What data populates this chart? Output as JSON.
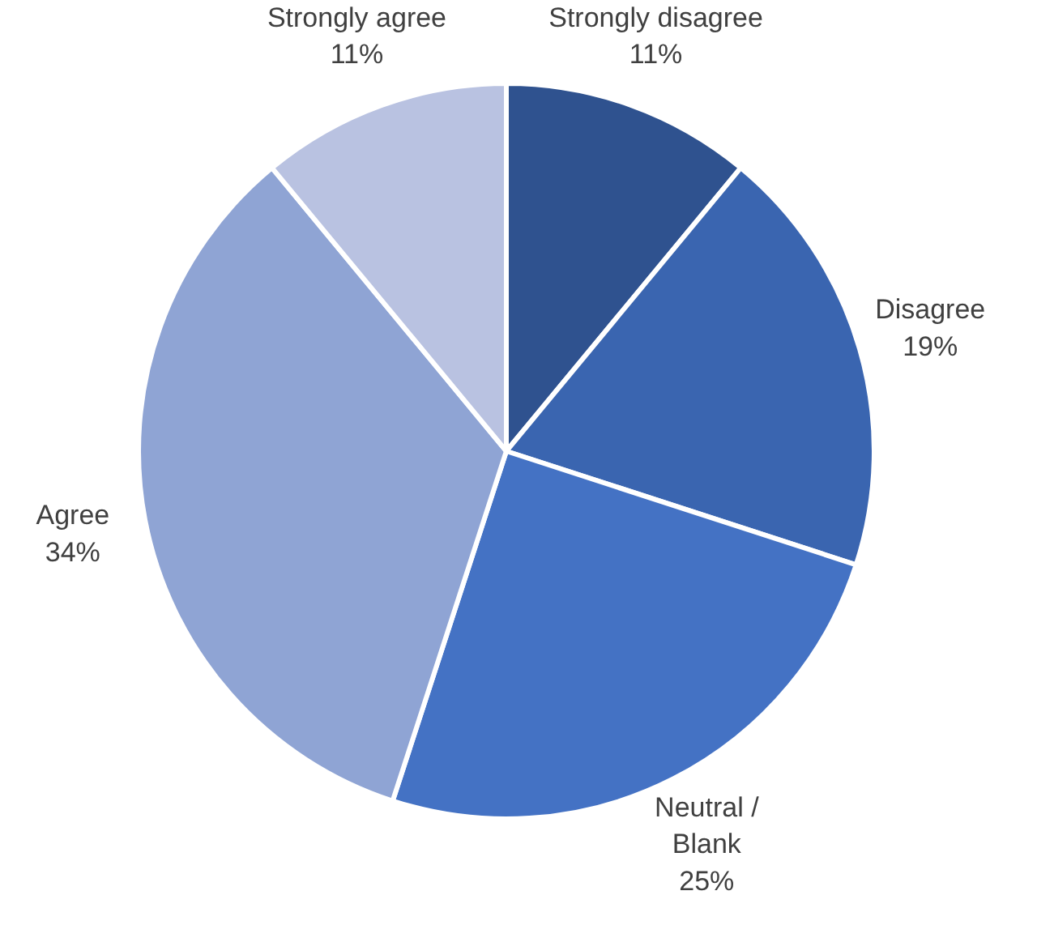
{
  "chart_data": {
    "type": "pie",
    "categories": [
      "Strongly disagree",
      "Disagree",
      "Neutral / Blank",
      "Agree",
      "Strongly agree"
    ],
    "values": [
      11,
      19,
      25,
      34,
      11
    ],
    "colors": [
      "#2f528f",
      "#3a65b0",
      "#4472c4",
      "#8fa4d4",
      "#b9c2e1"
    ],
    "value_labels": [
      "11%",
      "19%",
      "25%",
      "34%",
      "11%"
    ]
  }
}
